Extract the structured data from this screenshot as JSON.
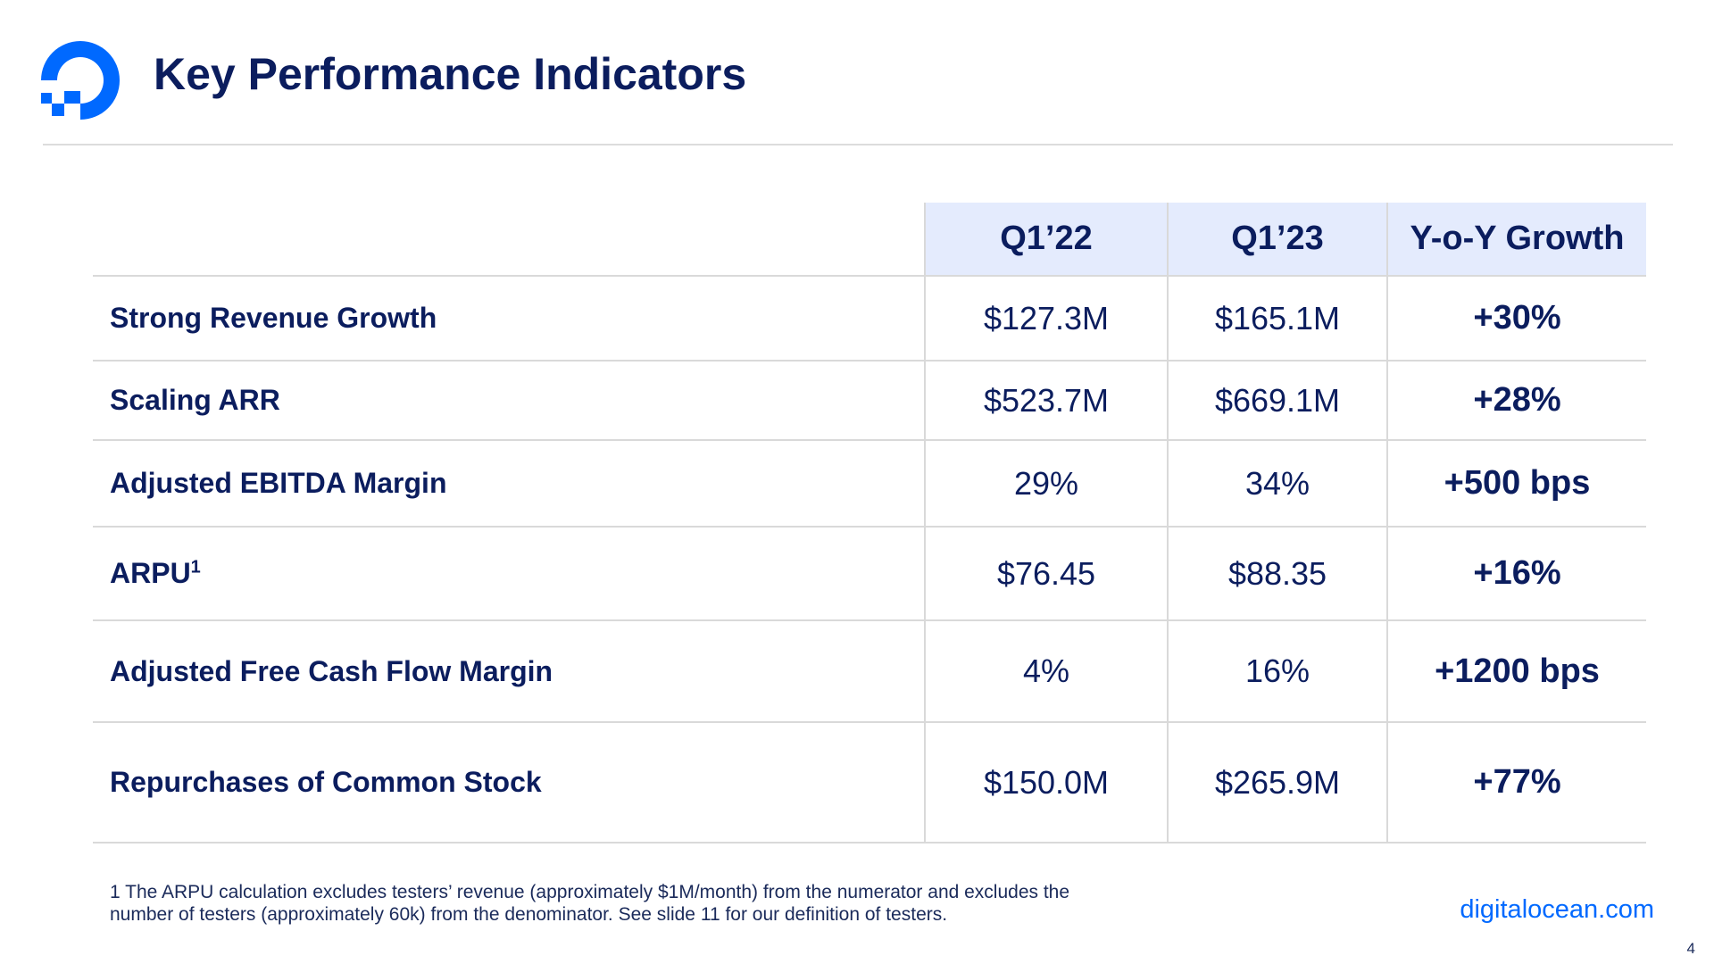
{
  "header": {
    "title": "Key Performance Indicators",
    "logo_icon": "digitalocean-logo-icon",
    "brand_color": "#0069ff",
    "text_color": "#0b1d5e"
  },
  "table": {
    "columns": [
      "Q1’22",
      "Q1’23",
      "Y-o-Y Growth"
    ],
    "header_fill": "#e4ebfd",
    "rows": [
      {
        "label": "Strong Revenue Growth",
        "sup": "",
        "q1_22": "$127.3M",
        "q1_23": "$165.1M",
        "growth": "+30%"
      },
      {
        "label": "Scaling ARR",
        "sup": "",
        "q1_22": "$523.7M",
        "q1_23": "$669.1M",
        "growth": "+28%"
      },
      {
        "label": "Adjusted EBITDA Margin",
        "sup": "",
        "q1_22": "29%",
        "q1_23": "34%",
        "growth": "+500 bps"
      },
      {
        "label": "ARPU",
        "sup": "1",
        "q1_22": "$76.45",
        "q1_23": "$88.35",
        "growth": "+16%"
      },
      {
        "label": "Adjusted Free Cash Flow Margin",
        "sup": "",
        "q1_22": "4%",
        "q1_23": "16%",
        "growth": "+1200 bps"
      },
      {
        "label": "Repurchases of Common Stock",
        "sup": "",
        "q1_22": "$150.0M",
        "q1_23": "$265.9M",
        "growth": "+77%"
      }
    ]
  },
  "footer": {
    "footnote_line1": "1 The ARPU calculation excludes testers’ revenue (approximately $1M/month) from the numerator and excludes the",
    "footnote_line2": "number of testers (approximately 60k) from the denominator.  See slide 11 for our definition of testers.",
    "website": "digitalocean.com",
    "page_number": "4"
  }
}
